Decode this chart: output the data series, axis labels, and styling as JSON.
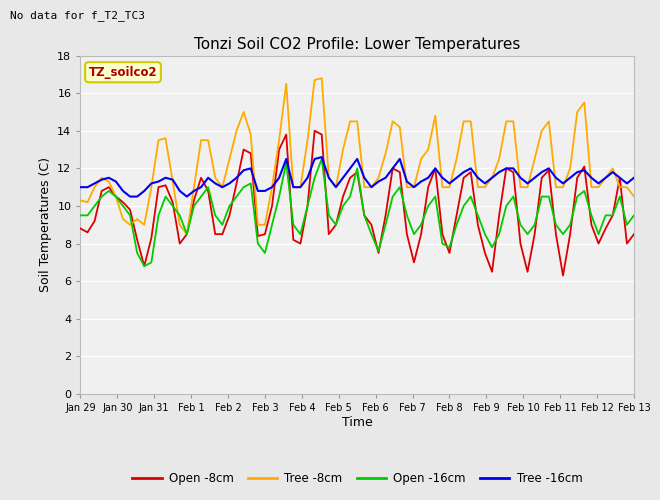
{
  "title": "Tonzi Soil CO2 Profile: Lower Temperatures",
  "subtitle": "No data for f_T2_TC3",
  "xlabel": "Time",
  "ylabel": "Soil Temperatures (C)",
  "ylim": [
    0,
    18
  ],
  "yticks": [
    0,
    2,
    4,
    6,
    8,
    10,
    12,
    14,
    16,
    18
  ],
  "xtick_labels": [
    "Jan 29",
    "Jan 30",
    "Jan 31",
    "Feb 1",
    "Feb 2",
    "Feb 3",
    "Feb 4",
    "Feb 5",
    "Feb 6",
    "Feb 7",
    "Feb 8",
    "Feb 9",
    "Feb 10",
    "Feb 11",
    "Feb 12",
    "Feb 13"
  ],
  "inset_label": "TZ_soilco2",
  "legend_entries": [
    "Open -8cm",
    "Tree -8cm",
    "Open -16cm",
    "Tree -16cm"
  ],
  "line_colors": [
    "#dd0000",
    "#ffaa00",
    "#00cc00",
    "#0000ee"
  ],
  "background_color": "#e8e8e8",
  "plot_bg_color": "#f0f0f0",
  "grid_color": "#ffffff",
  "open8_data": [
    8.8,
    8.6,
    9.2,
    10.8,
    11.0,
    10.5,
    10.2,
    9.8,
    8.2,
    6.8,
    8.3,
    11.0,
    11.1,
    10.2,
    8.0,
    8.5,
    10.3,
    11.5,
    10.8,
    8.5,
    8.5,
    9.5,
    11.2,
    13.0,
    12.8,
    8.4,
    8.5,
    10.0,
    13.0,
    13.8,
    8.2,
    8.0,
    10.0,
    14.0,
    13.8,
    8.5,
    9.0,
    10.5,
    11.5,
    11.8,
    9.5,
    9.0,
    7.5,
    9.5,
    12.0,
    11.8,
    8.5,
    7.0,
    8.5,
    11.0,
    12.0,
    8.5,
    7.5,
    9.5,
    11.5,
    11.8,
    9.0,
    7.5,
    6.5,
    9.5,
    12.0,
    11.8,
    8.0,
    6.5,
    8.5,
    11.5,
    11.9,
    8.5,
    6.3,
    8.5,
    11.5,
    12.1,
    9.0,
    8.0,
    8.8,
    9.5,
    11.5,
    8.0,
    8.5
  ],
  "tree8_data": [
    10.3,
    10.2,
    11.0,
    11.5,
    11.3,
    10.5,
    9.3,
    9.0,
    9.3,
    9.0,
    11.0,
    13.5,
    13.6,
    11.3,
    9.0,
    8.5,
    11.0,
    13.5,
    13.5,
    11.5,
    11.0,
    12.5,
    14.0,
    15.0,
    13.8,
    9.0,
    9.0,
    11.0,
    13.5,
    16.5,
    11.0,
    11.0,
    13.5,
    16.7,
    16.8,
    11.5,
    11.0,
    13.0,
    14.5,
    14.5,
    11.0,
    11.0,
    11.5,
    12.8,
    14.5,
    14.2,
    11.0,
    11.0,
    12.5,
    13.0,
    14.8,
    11.0,
    11.0,
    12.5,
    14.5,
    14.5,
    11.0,
    11.0,
    11.5,
    12.5,
    14.5,
    14.5,
    11.0,
    11.0,
    12.5,
    14.0,
    14.5,
    11.0,
    11.0,
    12.0,
    15.0,
    15.5,
    11.0,
    11.0,
    11.5,
    12.0,
    11.0,
    11.0,
    10.5
  ],
  "open16_data": [
    9.5,
    9.5,
    10.0,
    10.5,
    10.8,
    10.5,
    10.0,
    9.5,
    7.5,
    6.8,
    7.0,
    9.5,
    10.5,
    10.0,
    9.5,
    8.5,
    10.0,
    10.5,
    11.0,
    9.5,
    9.0,
    10.0,
    10.5,
    11.0,
    11.2,
    8.0,
    7.5,
    9.0,
    10.5,
    12.3,
    9.0,
    8.5,
    10.0,
    11.5,
    12.5,
    9.5,
    9.0,
    10.0,
    10.5,
    12.0,
    9.5,
    8.5,
    7.6,
    9.0,
    10.5,
    11.0,
    9.5,
    8.5,
    9.0,
    10.0,
    10.5,
    8.0,
    7.8,
    9.0,
    10.0,
    10.5,
    9.5,
    8.5,
    7.8,
    8.5,
    10.0,
    10.5,
    9.0,
    8.5,
    9.0,
    10.5,
    10.5,
    9.0,
    8.5,
    9.0,
    10.5,
    10.8,
    9.5,
    8.5,
    9.5,
    9.5,
    10.5,
    9.0,
    9.5
  ],
  "tree16_data": [
    11.0,
    11.0,
    11.2,
    11.4,
    11.5,
    11.3,
    10.8,
    10.5,
    10.5,
    10.8,
    11.2,
    11.3,
    11.5,
    11.4,
    10.8,
    10.5,
    10.8,
    11.0,
    11.5,
    11.2,
    11.0,
    11.2,
    11.5,
    11.9,
    12.0,
    10.8,
    10.8,
    11.0,
    11.5,
    12.5,
    11.0,
    11.0,
    11.5,
    12.5,
    12.6,
    11.5,
    11.0,
    11.5,
    12.0,
    12.5,
    11.5,
    11.0,
    11.3,
    11.5,
    12.0,
    12.5,
    11.3,
    11.0,
    11.3,
    11.5,
    12.0,
    11.5,
    11.2,
    11.5,
    11.8,
    12.0,
    11.5,
    11.2,
    11.5,
    11.8,
    12.0,
    12.0,
    11.5,
    11.2,
    11.5,
    11.8,
    12.0,
    11.5,
    11.2,
    11.5,
    11.8,
    11.9,
    11.5,
    11.2,
    11.5,
    11.8,
    11.5,
    11.2,
    11.5
  ]
}
